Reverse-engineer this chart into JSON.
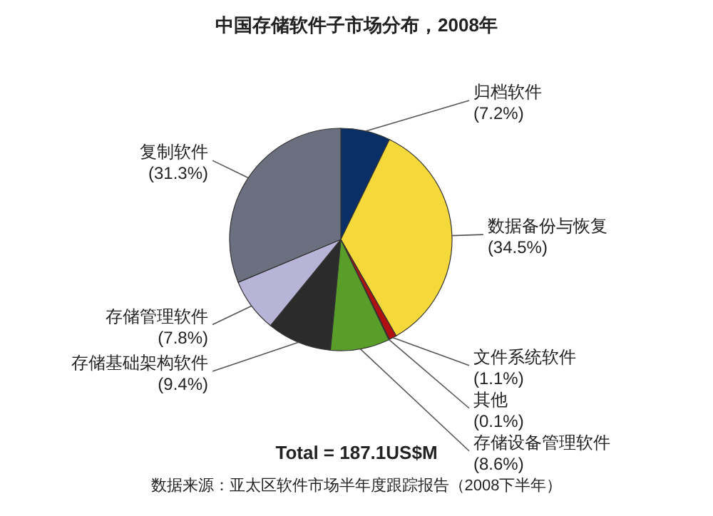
{
  "chart_data": {
    "type": "pie",
    "title": "中国存储软件子市场分布，2008年",
    "categories": [
      "归档软件",
      "数据备份与恢复",
      "文件系统软件",
      "其他",
      "存储设备管理软件",
      "存储基础架构软件",
      "存储管理软件",
      "复制软件"
    ],
    "values": [
      7.2,
      34.5,
      1.1,
      0.1,
      8.6,
      9.4,
      7.8,
      31.3
    ],
    "value_labels": [
      "(7.2%)",
      "(34.5%)",
      "(1.1%)",
      "(0.1%)",
      "(8.6%)",
      "(9.4%)",
      "(7.8%)",
      "(31.3%)"
    ],
    "colors": [
      "#0a2f66",
      "#f5d83a",
      "#b01010",
      "#e8e8e8",
      "#5a9e2a",
      "#2b2b2b",
      "#b8b4d8",
      "#6b7080"
    ],
    "annotations": [
      "Total = 187.1US$M",
      "数据来源：亚太区软件市场半年度跟踪报告（2008下半年）"
    ]
  }
}
